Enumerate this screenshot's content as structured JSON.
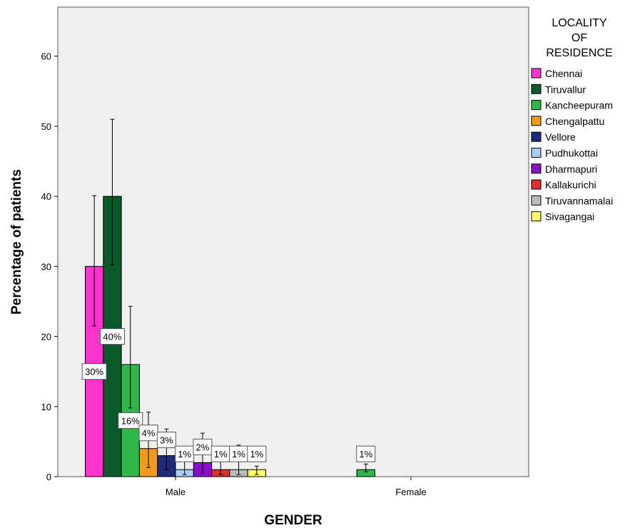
{
  "chart_data": {
    "type": "bar",
    "xlabel": "GENDER",
    "ylabel": "Percentage of patients",
    "ylim": [
      0,
      67
    ],
    "yticks": [
      0,
      10,
      20,
      30,
      40,
      50,
      60
    ],
    "categories": [
      "Male",
      "Female"
    ],
    "legend_title": [
      "LOCALITY",
      "OF",
      "RESIDENCE"
    ],
    "legend_position": "right",
    "grid": false,
    "error_bars": true,
    "series": [
      {
        "name": "Chennai",
        "color": "#ff33cc",
        "values": [
          30,
          null
        ],
        "labels": [
          "30%",
          null
        ],
        "error": [
          [
            21.5,
            40.1
          ],
          null
        ]
      },
      {
        "name": "Tiruvallur",
        "color": "#0a5a2c",
        "values": [
          40,
          null
        ],
        "labels": [
          "40%",
          null
        ],
        "error": [
          [
            30.2,
            51.0
          ],
          null
        ]
      },
      {
        "name": "Kancheepuram",
        "color": "#2eb84a",
        "values": [
          16,
          1
        ],
        "labels": [
          "16%",
          "1%"
        ],
        "error": [
          [
            9.8,
            24.3
          ],
          [
            0.7,
            1.8
          ]
        ]
      },
      {
        "name": "Chengalpattu",
        "color": "#f39a1e",
        "values": [
          4,
          null
        ],
        "labels": [
          "4%",
          null
        ],
        "error": [
          [
            1.3,
            9.2
          ],
          null
        ]
      },
      {
        "name": "Vellore",
        "color": "#1f2a7a",
        "values": [
          3,
          null
        ],
        "labels": [
          "3%",
          null
        ],
        "error": [
          [
            1.0,
            6.8
          ],
          null
        ]
      },
      {
        "name": "Pudhukottai",
        "color": "#a9cdf0",
        "values": [
          1,
          null
        ],
        "labels": [
          "1%",
          null
        ],
        "error": [
          [
            0.3,
            2.5
          ],
          null
        ]
      },
      {
        "name": "Dharmapuri",
        "color": "#8a10c8",
        "values": [
          2,
          null
        ],
        "labels": [
          "2%",
          null
        ],
        "error": [
          [
            0.5,
            6.2
          ],
          null
        ]
      },
      {
        "name": "Kallakurichi",
        "color": "#e52b2b",
        "values": [
          1,
          null
        ],
        "labels": [
          "1%",
          null
        ],
        "error": [
          [
            0.3,
            4.3
          ],
          null
        ]
      },
      {
        "name": "Tiruvannamalai",
        "color": "#bbbbbb",
        "values": [
          1,
          null
        ],
        "labels": [
          "1%",
          null
        ],
        "error": [
          [
            0.3,
            4.5
          ],
          null
        ]
      },
      {
        "name": "Sivagangai",
        "color": "#ffff66",
        "values": [
          1,
          null
        ],
        "labels": [
          "1%",
          null
        ],
        "error": [
          [
            0.3,
            1.5
          ],
          null
        ]
      }
    ]
  }
}
